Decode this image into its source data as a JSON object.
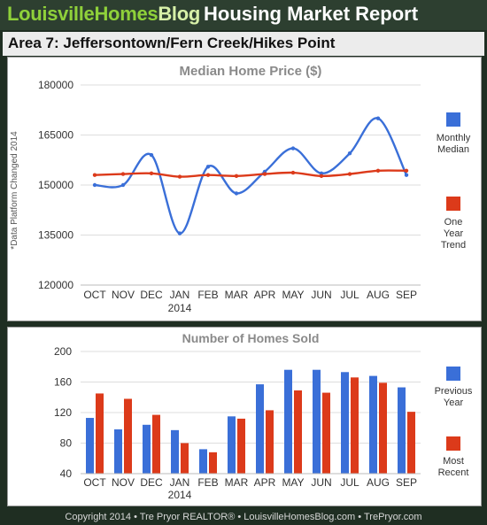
{
  "header": {
    "brand_part1": "LouisvilleHomes",
    "brand_part2": "Blog",
    "title": "Housing Market Report"
  },
  "area_title": "Area 7: Jeffersontown/Fern Creek/Hikes Point",
  "footer": "Copyright 2014 • Tre Pryor REALTOR® • LouisvilleHomesBlog.com • TrePryor.com",
  "colors": {
    "blue": "#3a6fd8",
    "red": "#dc3a1a",
    "grid": "#dddddd"
  },
  "chart_data": [
    {
      "type": "line",
      "title": "Median Home Price ($)",
      "side_note": "*Data Platform Changed 2014",
      "categories": [
        "OCT",
        "NOV",
        "DEC",
        "JAN",
        "FEB",
        "MAR",
        "APR",
        "MAY",
        "JUN",
        "JUL",
        "AUG",
        "SEP"
      ],
      "year_label": "2014",
      "y_ticks": [
        "120000",
        "135000",
        "150000",
        "165000",
        "180000"
      ],
      "ylim": [
        120000,
        180000
      ],
      "grid": true,
      "legend_position": "right",
      "series": [
        {
          "name": "Monthly Median",
          "legend_lines": [
            "Monthly",
            "Median"
          ],
          "color": "#3a6fd8",
          "values": [
            150000,
            150000,
            159000,
            135500,
            155500,
            147500,
            154000,
            161000,
            153500,
            159500,
            170000,
            153000
          ]
        },
        {
          "name": "One Year Trend",
          "legend_lines": [
            "One",
            "Year",
            "Trend"
          ],
          "color": "#dc3a1a",
          "values": [
            153000,
            153300,
            153500,
            152500,
            153000,
            152700,
            153300,
            153700,
            152700,
            153300,
            154300,
            154300
          ]
        }
      ]
    },
    {
      "type": "bar",
      "title": "Number of Homes Sold",
      "categories": [
        "OCT",
        "NOV",
        "DEC",
        "JAN",
        "FEB",
        "MAR",
        "APR",
        "MAY",
        "JUN",
        "JUL",
        "AUG",
        "SEP"
      ],
      "year_label": "2014",
      "y_ticks": [
        "40",
        "80",
        "120",
        "160",
        "200"
      ],
      "ylim": [
        40,
        200
      ],
      "grid": true,
      "legend_position": "right",
      "series": [
        {
          "name": "Previous Year",
          "legend_lines": [
            "Previous",
            "Year"
          ],
          "color": "#3a6fd8",
          "values": [
            113,
            98,
            104,
            97,
            72,
            115,
            157,
            176,
            176,
            173,
            168,
            153
          ]
        },
        {
          "name": "Most Recent",
          "legend_lines": [
            "Most",
            "Recent"
          ],
          "color": "#dc3a1a",
          "values": [
            145,
            138,
            117,
            80,
            68,
            112,
            123,
            149,
            146,
            166,
            159,
            121
          ]
        }
      ]
    }
  ]
}
